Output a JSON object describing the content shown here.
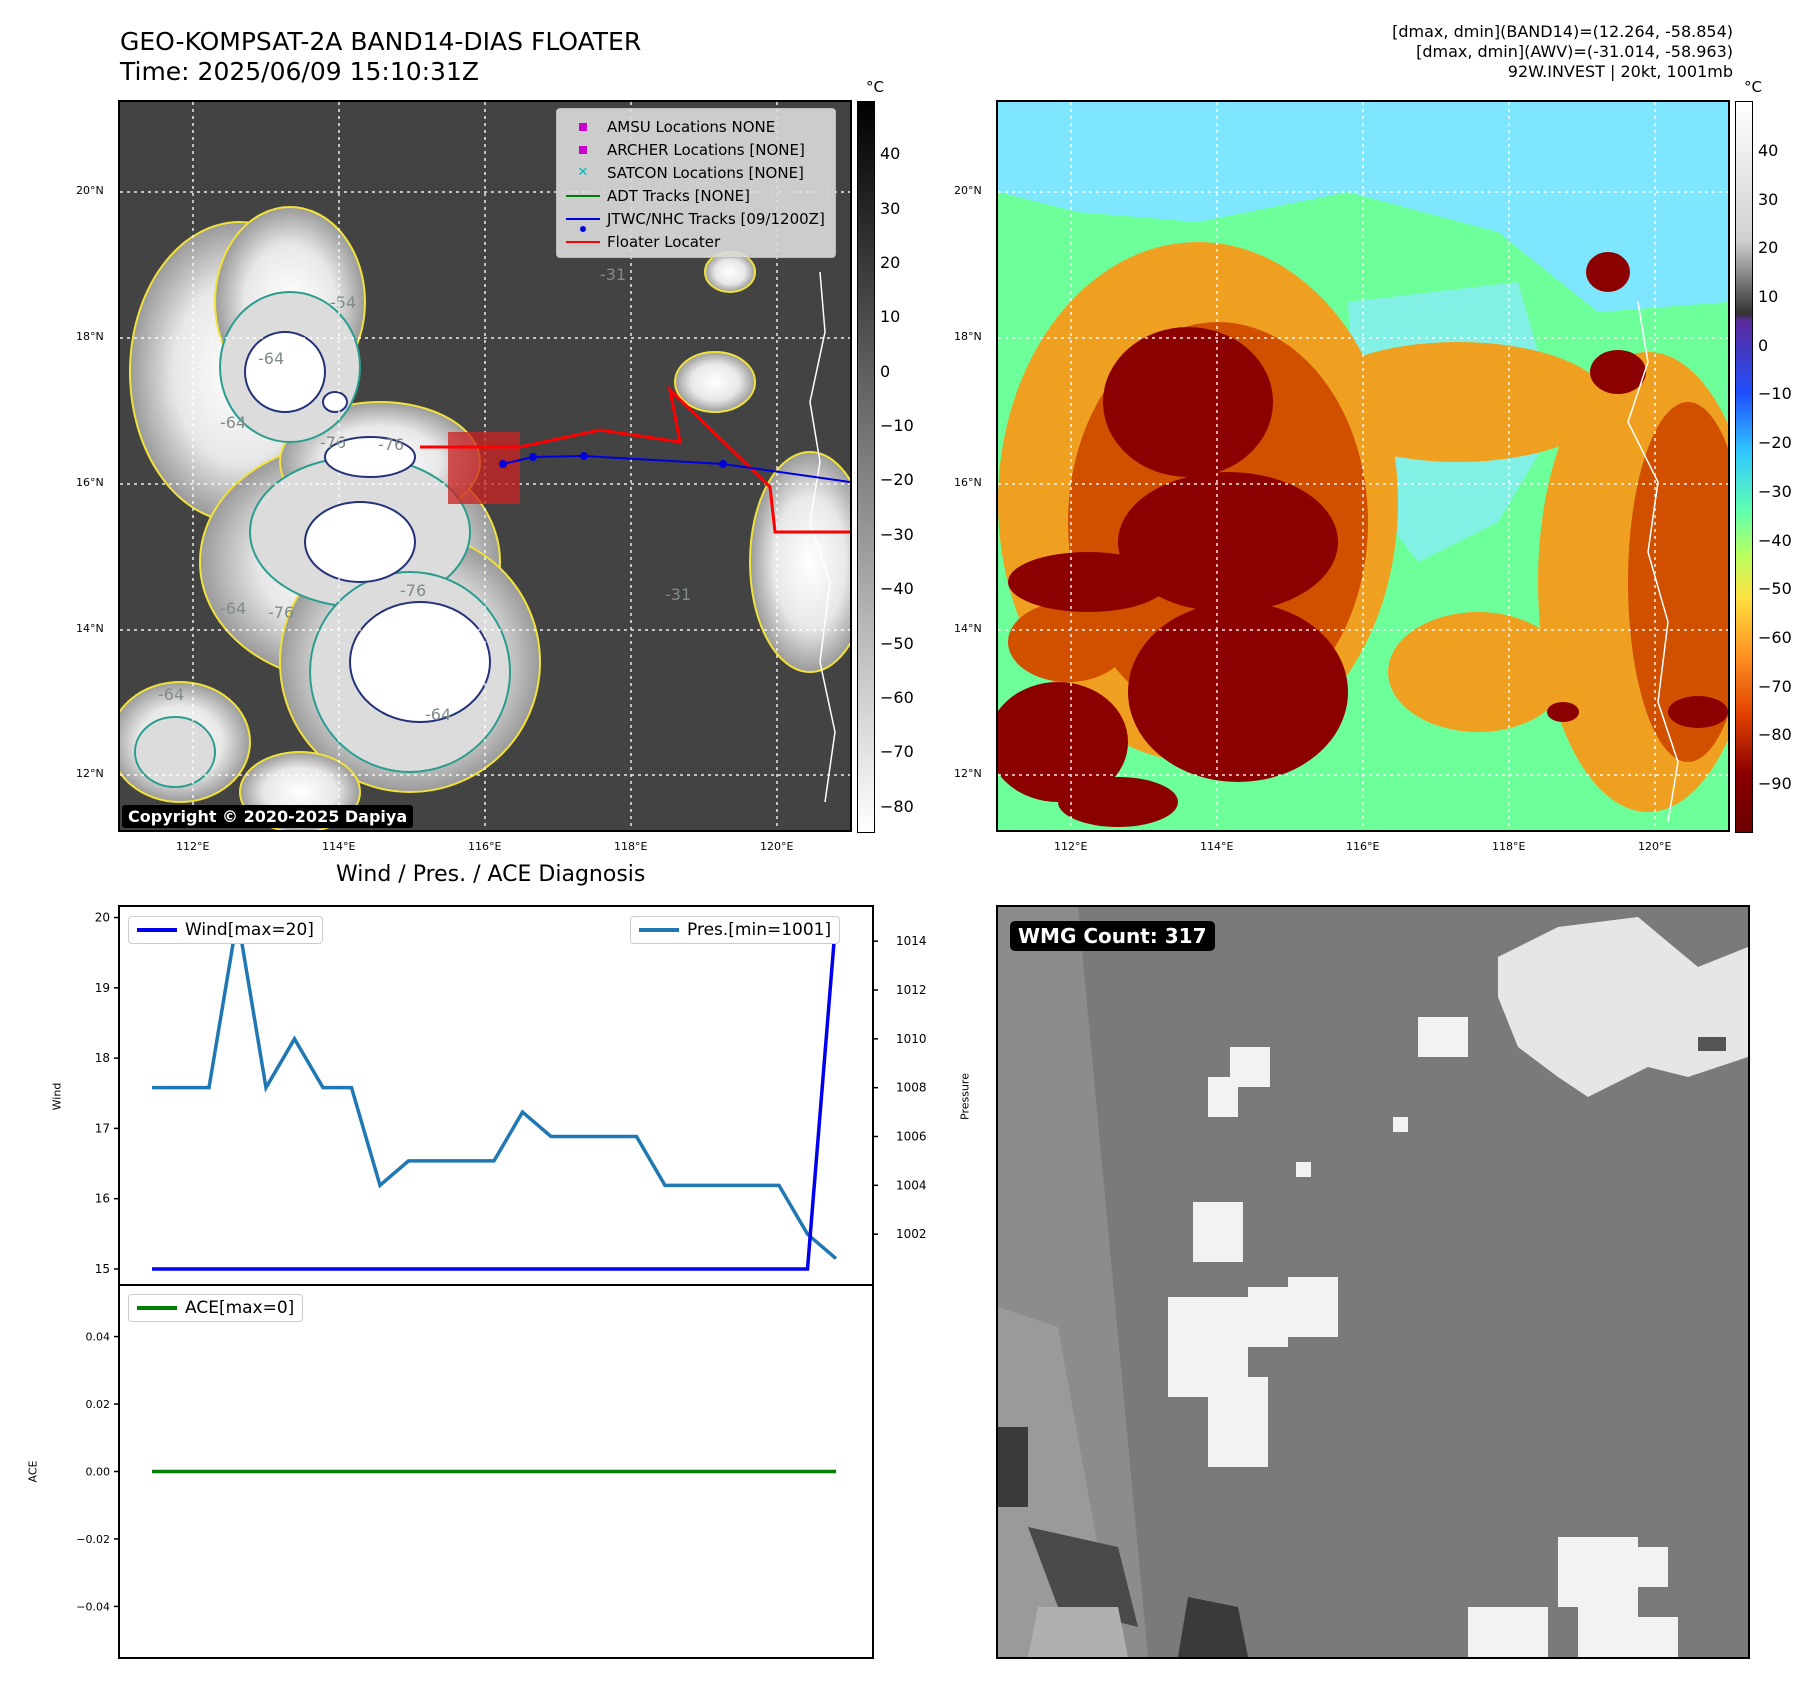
{
  "header": {
    "title_line1": "GEO-KOMPSAT-2A BAND14-DIAS FLOATER",
    "title_line2": "Time: 2025/06/09 15:10:31Z",
    "info_line1": "[dmax, dmin](BAND14)=(12.264, -58.854)",
    "info_line2": "[dmax, dmin](AWV)=(-31.014, -58.963)",
    "info_line3": "92W.INVEST | 20kt, 1001mb"
  },
  "colors": {
    "wind": "#0000ee",
    "pressure": "#1f77b4",
    "ace": "#008000",
    "jtwc": "#0000dd",
    "floater": "#ff0000",
    "amsu": "#cc00cc",
    "archer": "#cc00cc",
    "satcon": "#00bbbb",
    "adt": "#008000"
  },
  "map": {
    "lat_labels": [
      "20°N",
      "18°N",
      "16°N",
      "14°N",
      "12°N"
    ],
    "lon_labels": [
      "112°E",
      "114°E",
      "116°E",
      "118°E",
      "120°E"
    ],
    "copyright": "Copyright © 2020-2025 Dapiya",
    "contour_labels": [
      "-31",
      "-64",
      "-76",
      "-54",
      "-64",
      "-76",
      "-76",
      "-64",
      "-76",
      "-64",
      "-64",
      "-31"
    ]
  },
  "legend": {
    "items": [
      {
        "label": "AMSU Locations NONE",
        "symbol": "square",
        "color": "#cc00cc"
      },
      {
        "label": "ARCHER Locations [NONE]",
        "symbol": "square",
        "color": "#cc00cc"
      },
      {
        "label": "SATCON Locations [NONE]",
        "symbol": "x",
        "color": "#00bbbb"
      },
      {
        "label": "ADT Tracks [NONE]",
        "symbol": "line",
        "color": "#008000"
      },
      {
        "label": "JTWC/NHC Tracks [09/1200Z]",
        "symbol": "line-dot",
        "color": "#0000dd"
      },
      {
        "label": "Floater Locater",
        "symbol": "line",
        "color": "#ff0000"
      }
    ]
  },
  "colorbar_left": {
    "unit": "°C",
    "ticks": [
      "40",
      "30",
      "20",
      "10",
      "0",
      "−10",
      "−20",
      "−30",
      "−40",
      "−50",
      "−60",
      "−70",
      "−80"
    ]
  },
  "colorbar_right": {
    "unit": "°C",
    "ticks": [
      "40",
      "30",
      "20",
      "10",
      "0",
      "−10",
      "−20",
      "−30",
      "−40",
      "−50",
      "−60",
      "−70",
      "−80",
      "−90"
    ]
  },
  "diag": {
    "title": "Wind / Pres. / ACE Diagnosis",
    "wind_legend": "Wind[max=20]",
    "pres_legend": "Pres.[min=1001]",
    "ace_legend": "ACE[max=0]",
    "wind_ylabel": "Wind",
    "pres_ylabel": "Pressure",
    "ace_ylabel": "ACE"
  },
  "wmg": {
    "label": "WMG Count: 317"
  },
  "chart_data": [
    {
      "type": "line",
      "name": "Wind / Pres. diagnosis",
      "x": [
        0,
        1,
        2,
        3,
        4,
        5,
        6,
        7,
        8,
        9,
        10,
        11,
        12,
        13,
        14,
        15,
        16,
        17,
        18,
        19,
        20,
        21,
        22,
        23,
        24
      ],
      "series": [
        {
          "name": "Wind[max=20]",
          "axis": "left",
          "values": [
            15,
            15,
            15,
            15,
            15,
            15,
            15,
            15,
            15,
            15,
            15,
            15,
            15,
            15,
            15,
            15,
            15,
            15,
            15,
            15,
            15,
            15,
            15,
            15,
            20
          ]
        },
        {
          "name": "Pres.[min=1001]",
          "axis": "right",
          "values": [
            1008,
            1008,
            1008,
            1015,
            1008,
            1010,
            1008,
            1008,
            1004,
            1005,
            1005,
            1005,
            1005,
            1007,
            1006,
            1006,
            1006,
            1006,
            1004,
            1004,
            1004,
            1004,
            1004,
            1002,
            1001
          ]
        }
      ],
      "ylim": [
        14.8,
        20.15
      ],
      "y_ticks": [
        15,
        16,
        17,
        18,
        19,
        20
      ],
      "y2lim": [
        1000.0,
        1015.4
      ],
      "y2_ticks": [
        1002,
        1004,
        1006,
        1008,
        1010,
        1012,
        1014
      ],
      "ylabel": "Wind",
      "y2label": "Pressure",
      "legend": [
        "top-left",
        "top-right"
      ]
    },
    {
      "type": "line",
      "name": "ACE diagnosis",
      "x": [
        0,
        24
      ],
      "series": [
        {
          "name": "ACE[max=0]",
          "values": [
            0,
            0
          ]
        }
      ],
      "ylim": [
        -0.055,
        0.055
      ],
      "y_ticks": [
        0.04,
        0.02,
        0.0,
        -0.02,
        -0.04
      ],
      "y_tick_labels": [
        "0.04",
        "0.02",
        "0.00",
        "−0.02",
        "−0.04"
      ],
      "ylabel": "ACE",
      "legend": "top-left"
    }
  ]
}
